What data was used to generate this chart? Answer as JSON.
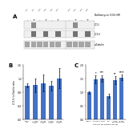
{
  "panel_B": {
    "categories": [
      "DMSO\n2h",
      "1 uM\nMCT-10d\n2h",
      "10 uM\nMCT-10d\n2h",
      "1 uM\nMCT-10d\n4h",
      "10 uM\nMCT-10d\n4h"
    ],
    "values": [
      1.0,
      1.02,
      1.08,
      1.0,
      1.22
    ],
    "errors": [
      0.06,
      0.2,
      0.24,
      0.14,
      0.3
    ],
    "ylabel": "LC3-II / α-Tubulin ratio",
    "label": "B",
    "ylim": [
      0.0,
      1.6
    ],
    "yticks": [
      0.0,
      0.4,
      0.8,
      1.2,
      1.6
    ],
    "bar_color": "#4472C4"
  },
  "panel_C": {
    "categories": [
      "DMSO",
      "0.5 μM",
      "1.0 μM",
      "100",
      "1 μM\nMCT-10d",
      "5 μM\nMCT-10d"
    ],
    "values": [
      1.0,
      1.48,
      1.52,
      0.88,
      1.45,
      1.55
    ],
    "errors": [
      0.05,
      0.14,
      0.12,
      0.07,
      0.14,
      0.1
    ],
    "ylabel": "",
    "label": "C",
    "ylim": [
      0.0,
      2.0
    ],
    "yticks": [
      0.0,
      0.5,
      1.0,
      1.5,
      2.0
    ],
    "bar_color": "#4472C4",
    "sig_markers": [
      "",
      "*",
      "***",
      "",
      "**",
      "****"
    ],
    "xlabel": "gAb 100 nM Bafilomycin nM"
  },
  "panel_A": {
    "label": "A",
    "bafilomycin_text": "Bafilomycin (100 nM)",
    "row_labels": [
      "LC3-I",
      "LC3-II",
      "α-Tubulin"
    ],
    "plus_minus_left": [
      "-",
      "+",
      "-",
      "+",
      "-",
      "+"
    ],
    "plus_minus_right": [
      "-",
      "+",
      "-",
      "+"
    ]
  },
  "fig_bg": "#ffffff"
}
